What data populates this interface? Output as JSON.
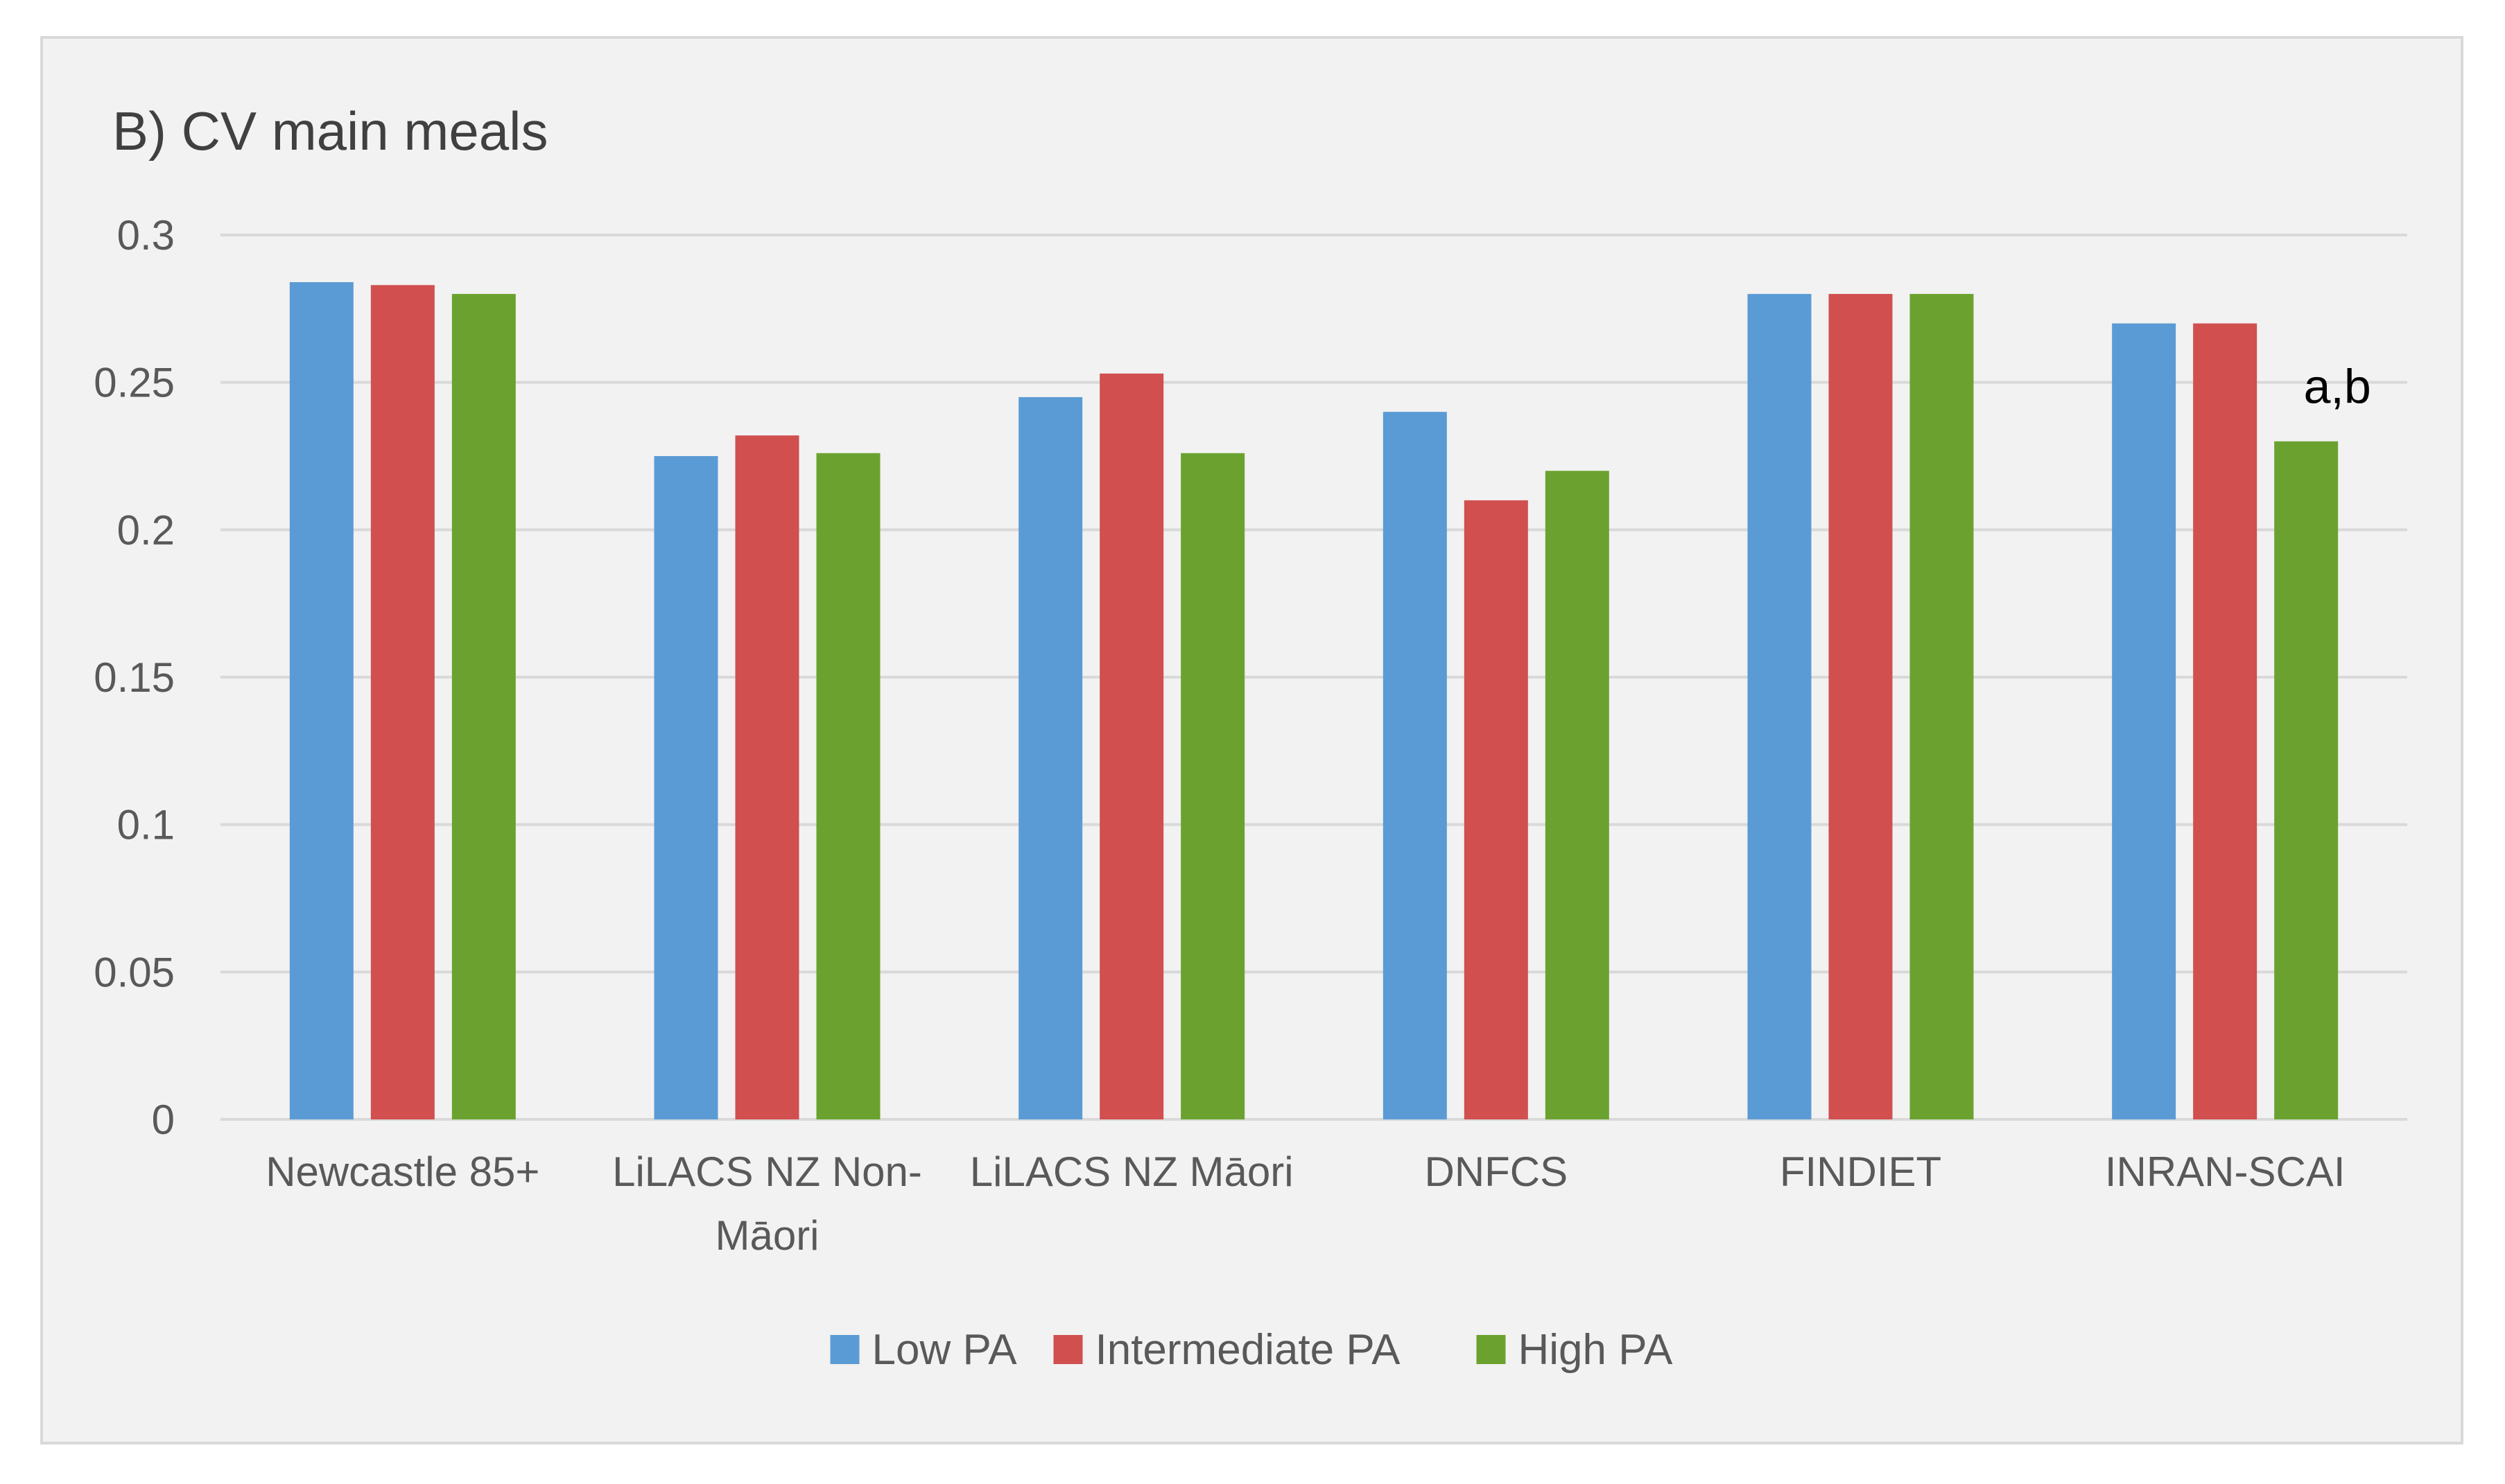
{
  "chart_data": {
    "type": "bar",
    "title": "B) CV main meals",
    "xlabel": "",
    "ylabel": "",
    "ylim": [
      0,
      0.3
    ],
    "yticks": [
      "0",
      "0.05",
      "0.1",
      "0.15",
      "0.2",
      "0.25",
      "0.3"
    ],
    "ytick_values": [
      0,
      0.05,
      0.1,
      0.15,
      0.2,
      0.25,
      0.3
    ],
    "grid": true,
    "legend_position": "bottom",
    "categories": [
      [
        "Newcastle 85+"
      ],
      [
        "LiLACS NZ Non-",
        "Māori"
      ],
      [
        "LiLACS NZ Māori"
      ],
      [
        "DNFCS"
      ],
      [
        "FINDIET"
      ],
      [
        "INRAN-SCAI"
      ]
    ],
    "series": [
      {
        "name": "Low PA",
        "color": "#5b9bd5",
        "values": [
          0.284,
          0.225,
          0.245,
          0.24,
          0.28,
          0.27
        ]
      },
      {
        "name": "Intermediate PA",
        "color": "#d14f4f",
        "values": [
          0.283,
          0.232,
          0.253,
          0.21,
          0.28,
          0.27
        ]
      },
      {
        "name": "High PA",
        "color": "#6ba22f",
        "values": [
          0.28,
          0.226,
          0.226,
          0.22,
          0.28,
          0.23
        ]
      }
    ],
    "annotations": [
      {
        "text": "a,b",
        "category_index": 5,
        "series_index": 2
      }
    ]
  },
  "colors": {
    "background": "#f2f2f2",
    "gridline": "#d9d9d9",
    "axis_text": "#595959"
  }
}
